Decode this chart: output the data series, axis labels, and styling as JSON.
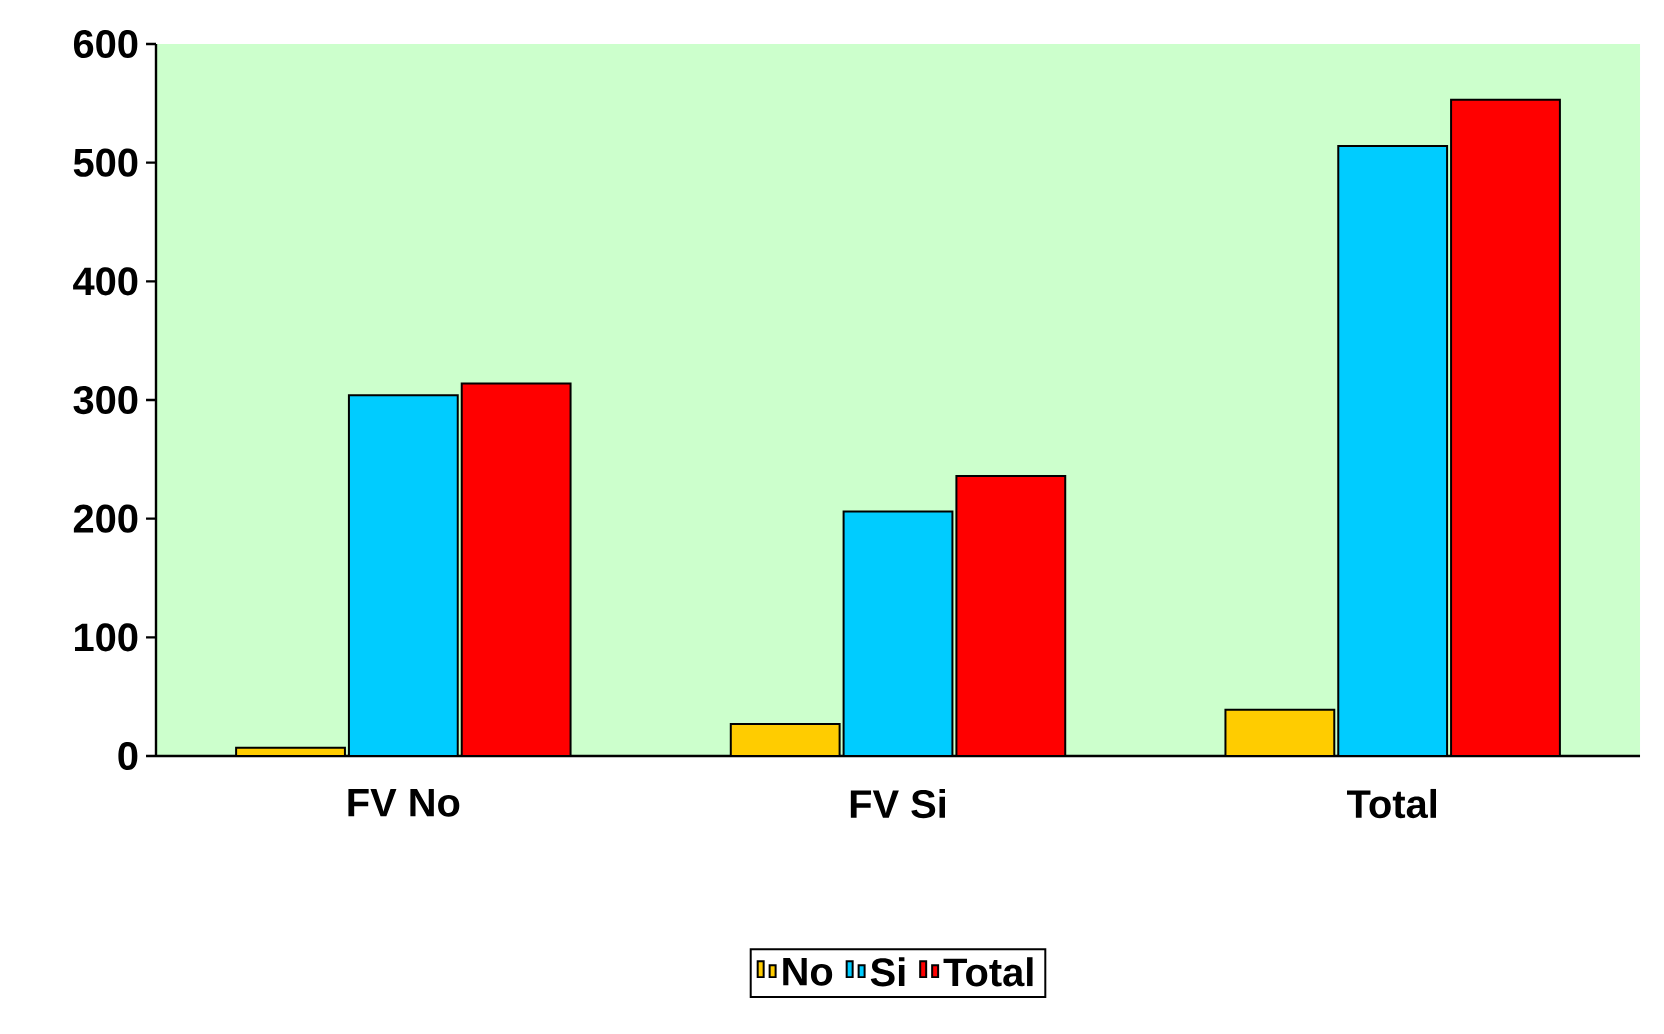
{
  "chart_data": {
    "type": "bar",
    "categories": [
      "FV No",
      "FV Si",
      "Total"
    ],
    "series": [
      {
        "name": "No",
        "color": "#ffcc00",
        "values": [
          7,
          27,
          39
        ]
      },
      {
        "name": "Si",
        "color": "#00ccff",
        "values": [
          304,
          206,
          514
        ]
      },
      {
        "name": "Total",
        "color": "#ff0000",
        "values": [
          314,
          236,
          553
        ]
      }
    ],
    "ylim": [
      0,
      600
    ],
    "yticks": [
      0,
      100,
      200,
      300,
      400,
      500,
      600
    ],
    "grid": false,
    "legend": "bottom"
  }
}
